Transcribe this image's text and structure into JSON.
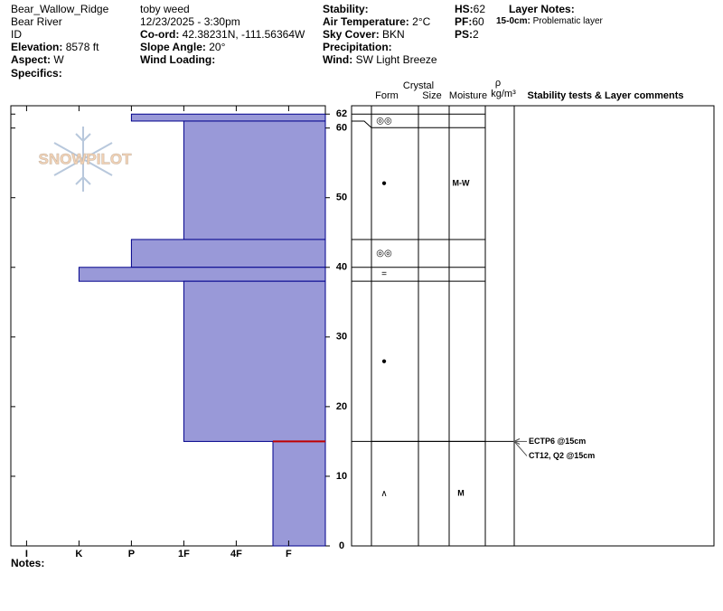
{
  "header": {
    "location": "Bear_Wallow_Ridge",
    "range": "Bear River",
    "state": "ID",
    "elevation": {
      "label": "Elevation:",
      "value": "8578 ft"
    },
    "aspect": {
      "label": "Aspect:",
      "value": "W"
    },
    "specifics": {
      "label": "Specifics:"
    },
    "observer": "toby weed",
    "datetime": "12/23/2025 - 3:30pm",
    "coord": {
      "label": "Co-ord:",
      "value": "42.38231N, -111.56364W"
    },
    "slope": {
      "label": "Slope Angle:",
      "value": "20°"
    },
    "wind_loading": {
      "label": "Wind Loading:"
    },
    "stability": {
      "label": "Stability:"
    },
    "air_temp": {
      "label": "Air Temperature:",
      "value": "2°C"
    },
    "sky": {
      "label": "Sky Cover:",
      "value": "BKN"
    },
    "precip": {
      "label": "Precipitation:"
    },
    "wind": {
      "label": "Wind:",
      "value": "SW Light Breeze"
    },
    "hs": {
      "label": "HS:",
      "value": "62"
    },
    "pf": {
      "label": "PF:",
      "value": "60"
    },
    "ps": {
      "label": "PS:",
      "value": "2"
    },
    "layer_notes": {
      "label": "Layer Notes:",
      "depth": "15-0cm:",
      "note": "Problematic layer"
    }
  },
  "notes": "Notes:",
  "logo": "SNOWPILOT",
  "columns": {
    "crystal": "Crystal",
    "form": "Form",
    "size": "Size",
    "moisture": "Moisture",
    "rho": "ρ",
    "density": "kg/m³",
    "comments": "Stability tests & Layer comments"
  },
  "chart_data": {
    "type": "profile",
    "xlim": [
      6.3,
      0.3
    ],
    "xticks": [
      {
        "value": 6,
        "label": "I"
      },
      {
        "value": 5,
        "label": "K"
      },
      {
        "value": 4,
        "label": "P"
      },
      {
        "value": 3,
        "label": "1F"
      },
      {
        "value": 2,
        "label": "4F"
      },
      {
        "value": 1,
        "label": "F"
      }
    ],
    "ylim": [
      0,
      63.2
    ],
    "yticks": [
      0,
      10,
      20,
      30,
      40,
      50,
      60,
      62
    ],
    "color": "#9999d8",
    "layers": [
      {
        "top": 62,
        "bottom": 61,
        "hardness": 4,
        "form": "◎◎"
      },
      {
        "top": 61,
        "bottom": 44,
        "hardness": 3,
        "form": "●",
        "moisture": "M-W"
      },
      {
        "top": 44,
        "bottom": 40,
        "hardness": 4,
        "form": "◎◎"
      },
      {
        "top": 40,
        "bottom": 38,
        "hardness": 5,
        "form": "="
      },
      {
        "top": 38,
        "bottom": 15,
        "hardness": 3,
        "form": "●"
      },
      {
        "top": 15,
        "bottom": 0,
        "hardness": 1.3,
        "form": "∧",
        "moisture": "M"
      }
    ],
    "problematic_depth": 15,
    "tests": [
      {
        "depth": 15,
        "label": "ECTP6 @15cm"
      },
      {
        "depth": 15,
        "label": "CT12, Q2 @15cm"
      }
    ]
  }
}
